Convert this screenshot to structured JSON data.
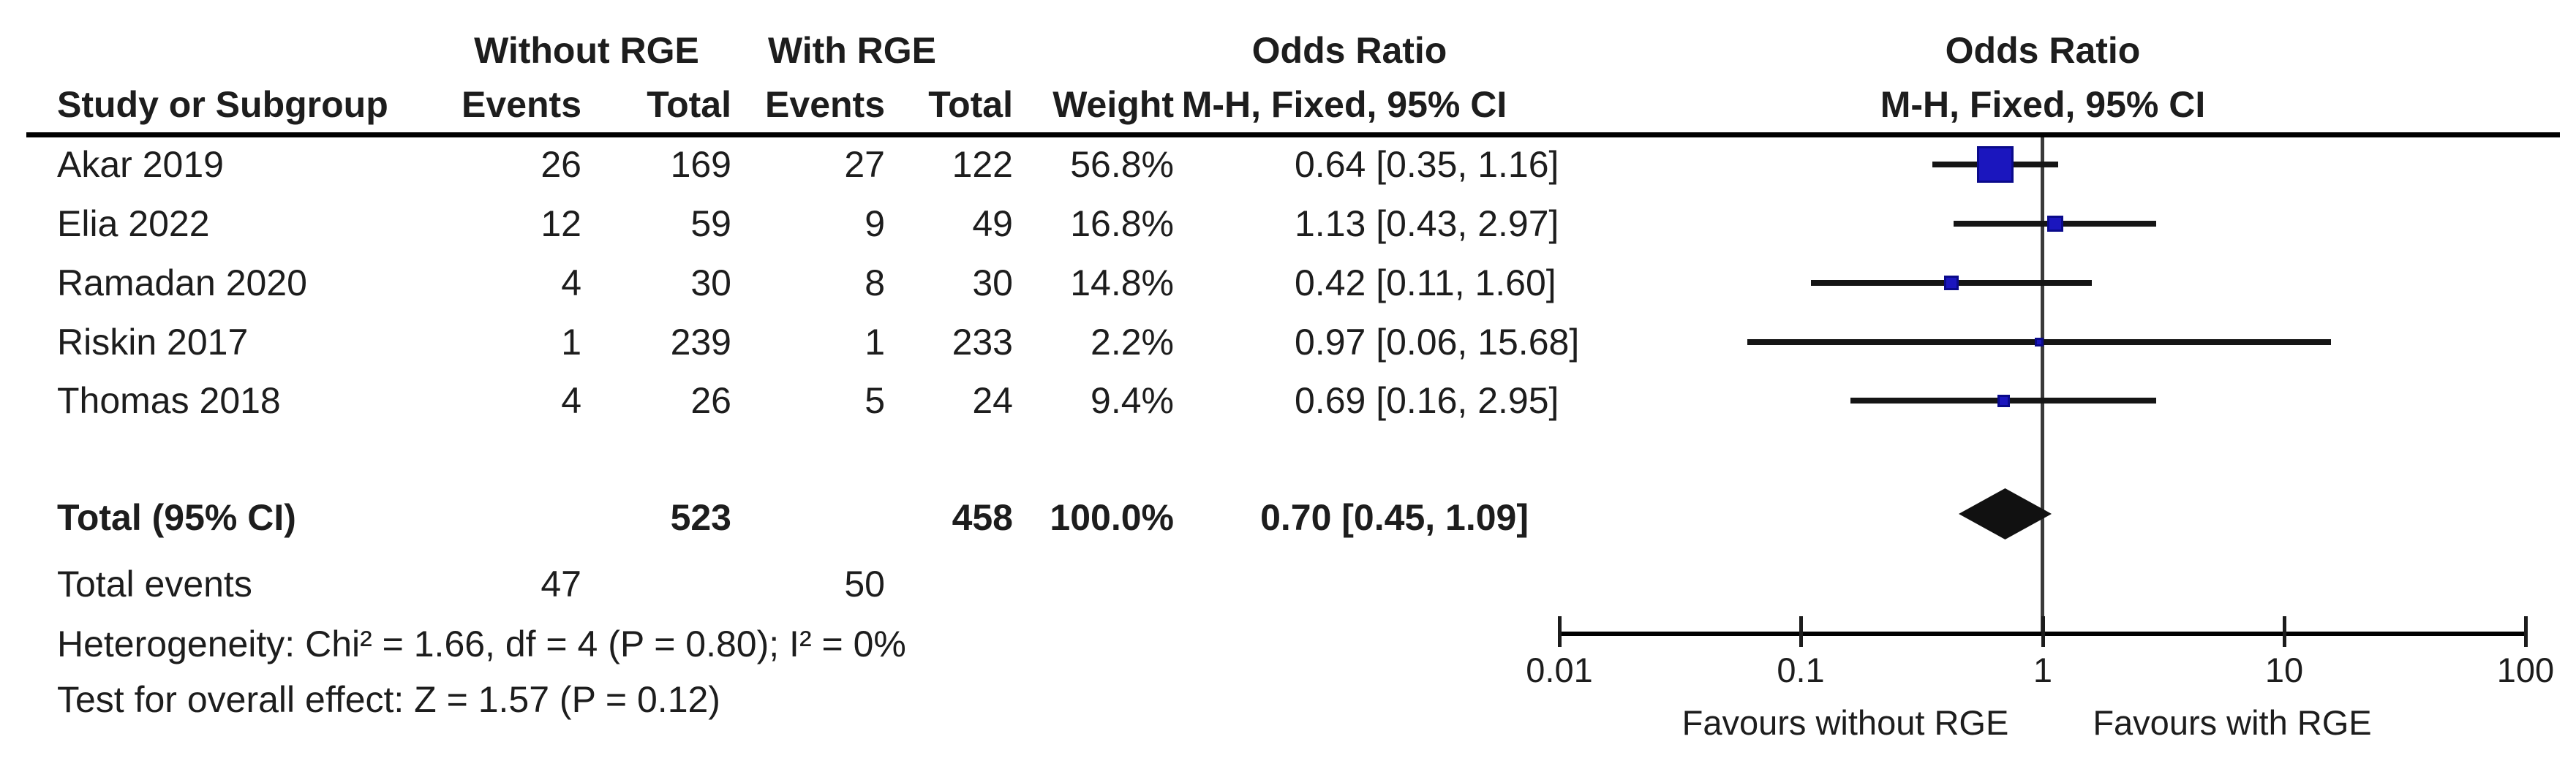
{
  "table": {
    "group_without": "Without RGE",
    "group_with": "With RGE",
    "or_header": "Odds Ratio",
    "headers": {
      "study": "Study or Subgroup",
      "events": "Events",
      "total": "Total",
      "weight": "Weight",
      "mh": "M-H, Fixed, 95% CI"
    },
    "total_row": {
      "label": "Total (95% CI)",
      "total_without": "523",
      "total_with": "458",
      "weight": "100.0%",
      "ci": "0.70 [0.45, 1.09]"
    },
    "events_row": {
      "label": "Total events",
      "events_without": "47",
      "events_with": "50"
    },
    "heterogeneity": "Heterogeneity: Chi² = 1.66, df = 4 (P = 0.80); I² = 0%",
    "overall_effect": "Test for overall effect: Z = 1.57 (P = 0.12)"
  },
  "plot": {
    "favours_left": "Favours without RGE",
    "favours_right": "Favours with RGE"
  },
  "colors": {
    "marker_fill": "#1b16be",
    "marker_border": "#0a0a8a",
    "diamond": "#111111",
    "text": "#1d1d1d"
  },
  "chart_data": {
    "type": "forest",
    "effect_measure": "Odds Ratio",
    "method": "M-H, Fixed, 95% CI",
    "x_scale": "log10",
    "x_ticks": [
      "0.01",
      "0.1",
      "1",
      "10",
      "100"
    ],
    "xlim": [
      0.01,
      100
    ],
    "studies": [
      {
        "name": "Akar 2019",
        "events_without": 26,
        "total_without": 169,
        "events_with": 27,
        "total_with": 122,
        "weight_pct": 56.8,
        "or": 0.64,
        "ci_low": 0.35,
        "ci_high": 1.16
      },
      {
        "name": "Elia 2022",
        "events_without": 12,
        "total_without": 59,
        "events_with": 9,
        "total_with": 49,
        "weight_pct": 16.8,
        "or": 1.13,
        "ci_low": 0.43,
        "ci_high": 2.97
      },
      {
        "name": "Ramadan 2020",
        "events_without": 4,
        "total_without": 30,
        "events_with": 8,
        "total_with": 30,
        "weight_pct": 14.8,
        "or": 0.42,
        "ci_low": 0.11,
        "ci_high": 1.6
      },
      {
        "name": "Riskin 2017",
        "events_without": 1,
        "total_without": 239,
        "events_with": 1,
        "total_with": 233,
        "weight_pct": 2.2,
        "or": 0.97,
        "ci_low": 0.06,
        "ci_high": 15.68
      },
      {
        "name": "Thomas 2018",
        "events_without": 4,
        "total_without": 26,
        "events_with": 5,
        "total_with": 24,
        "weight_pct": 9.4,
        "or": 0.69,
        "ci_low": 0.16,
        "ci_high": 2.95
      }
    ],
    "total": {
      "total_without": 523,
      "total_with": 458,
      "events_without": 47,
      "events_with": 50,
      "weight_pct": 100.0,
      "or": 0.7,
      "ci_low": 0.45,
      "ci_high": 1.09
    },
    "heterogeneity": {
      "chi2": 1.66,
      "df": 4,
      "p": 0.8,
      "i2_pct": 0
    },
    "overall_effect": {
      "z": 1.57,
      "p": 0.12
    },
    "favours": [
      "Favours without RGE",
      "Favours with RGE"
    ]
  }
}
